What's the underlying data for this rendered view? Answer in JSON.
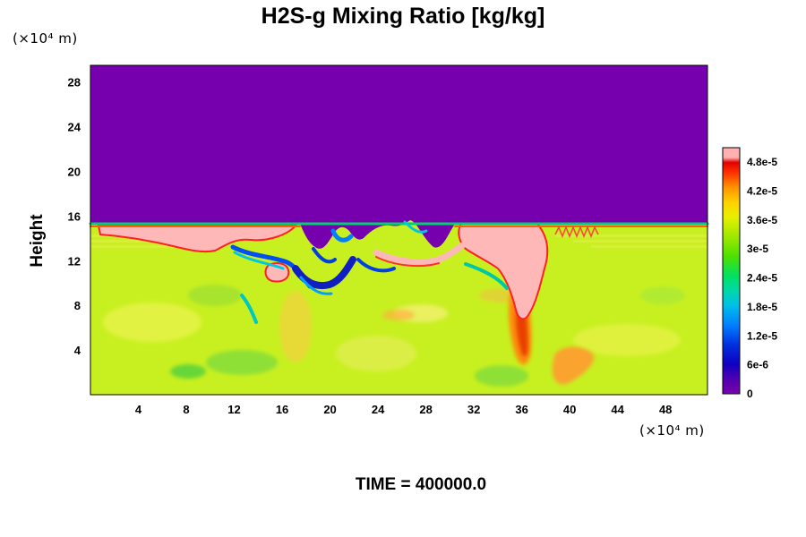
{
  "chart_data": {
    "type": "heatmap",
    "title": "H2S-g Mixing Ratio [kg/kg]",
    "ylabel": "Height",
    "xunit_label": "(×10⁴ m)",
    "yunit_label": "(×10⁴ m)",
    "footer": "TIME = 400000.0",
    "x_ticks": [
      "4",
      "8",
      "12",
      "16",
      "20",
      "24",
      "28",
      "32",
      "36",
      "40",
      "44",
      "48"
    ],
    "y_ticks": [
      "4",
      "8",
      "12",
      "16",
      "20",
      "24",
      "28"
    ],
    "xlim": [
      0,
      51.5
    ],
    "ylim": [
      0,
      29.5
    ],
    "colorbar": {
      "labels": [
        "0",
        "6e-6",
        "1.2e-5",
        "1.8e-5",
        "2.4e-5",
        "3e-5",
        "3.6e-5",
        "4.2e-5",
        "4.8e-5"
      ],
      "values": [
        0,
        6e-06,
        1.2e-05,
        1.8e-05,
        2.4e-05,
        3e-05,
        3.6e-05,
        4.2e-05,
        4.8e-05
      ],
      "max": 5.1e-05,
      "colors": [
        "#7a00b0",
        "#2a00b8",
        "#0033e0",
        "#0080ff",
        "#00d0d0",
        "#00e070",
        "#80e000",
        "#d8f000",
        "#ffe800",
        "#ffb000",
        "#ff6000",
        "#e00000",
        "#ffb0b0"
      ]
    },
    "field_description": {
      "upper_region_value": 0,
      "boundary_height": 15.7,
      "lower_background_value": 3.3e-05
    }
  }
}
